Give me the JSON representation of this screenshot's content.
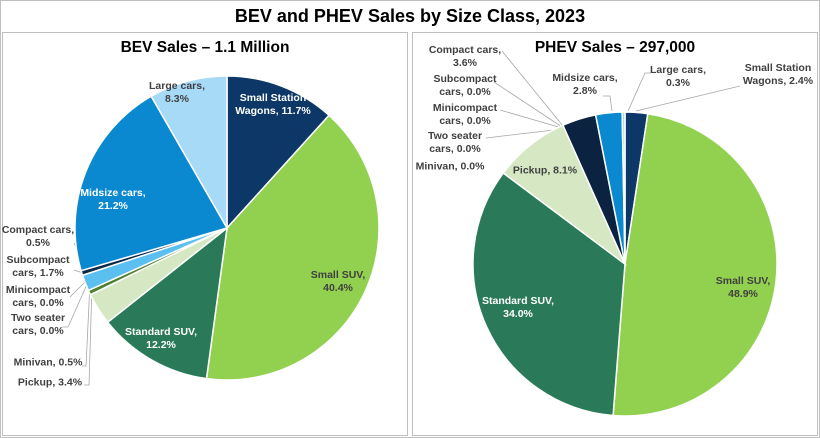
{
  "title": "BEV and PHEV Sales by Size Class, 2023",
  "chart_data": [
    {
      "type": "pie",
      "title": "BEV Sales – 1.1 Million",
      "unit": "%",
      "slices": [
        {
          "name": "Small Station Wagons",
          "value": 11.7,
          "color": "#0c3766",
          "label": "Small Station\nWagons, 11.7%"
        },
        {
          "name": "Small SUV",
          "value": 40.4,
          "color": "#92d050",
          "label": "Small SUV,\n40.4%"
        },
        {
          "name": "Standard SUV",
          "value": 12.2,
          "color": "#2a7a5a",
          "label": "Standard SUV,\n12.2%"
        },
        {
          "name": "Pickup",
          "value": 3.4,
          "color": "#d5e8c3",
          "label": "Pickup, 3.4%"
        },
        {
          "name": "Minivan",
          "value": 0.5,
          "color": "#4f7f2f",
          "label": "Minivan, 0.5%"
        },
        {
          "name": "Two seater cars",
          "value": 0.0,
          "color": "#6a9a50",
          "label": "Two seater\ncars, 0.0%"
        },
        {
          "name": "Minicompact cars",
          "value": 0.0,
          "color": "#3a5a80",
          "label": "Minicompact\ncars, 0.0%"
        },
        {
          "name": "Subcompact cars",
          "value": 1.7,
          "color": "#5bc0f0",
          "label": "Subcompact\ncars, 1.7%"
        },
        {
          "name": "Compact cars",
          "value": 0.5,
          "color": "#0b2a4a",
          "label": "Compact cars,\n0.5%"
        },
        {
          "name": "Midsize cars",
          "value": 21.2,
          "color": "#0a88d0",
          "label": "Midsize cars,\n21.2%"
        },
        {
          "name": "Large cars",
          "value": 8.3,
          "color": "#a6daf6",
          "label": "Large cars,\n8.3%"
        }
      ]
    },
    {
      "type": "pie",
      "title": "PHEV Sales – 297,000",
      "unit": "%",
      "slices": [
        {
          "name": "Small Station Wagons",
          "value": 2.4,
          "color": "#0c3766",
          "label": "Small Station\nWagons, 2.4%"
        },
        {
          "name": "Small SUV",
          "value": 48.9,
          "color": "#92d050",
          "label": "Small SUV,\n48.9%"
        },
        {
          "name": "Standard SUV",
          "value": 34.0,
          "color": "#2a7a5a",
          "label": "Standard SUV,\n34.0%"
        },
        {
          "name": "Pickup",
          "value": 8.1,
          "color": "#d5e8c3",
          "label": "Pickup, 8.1%"
        },
        {
          "name": "Minivan",
          "value": 0.0,
          "color": "#4f7f2f",
          "label": "Minivan, 0.0%"
        },
        {
          "name": "Two seater cars",
          "value": 0.0,
          "color": "#6a9a50",
          "label": "Two seater\ncars, 0.0%"
        },
        {
          "name": "Minicompact cars",
          "value": 0.0,
          "color": "#3a5a80",
          "label": "Minicompact\ncars, 0.0%"
        },
        {
          "name": "Subcompact cars",
          "value": 0.0,
          "color": "#5bc0f0",
          "label": "Subcompact\ncars, 0.0%"
        },
        {
          "name": "Compact cars",
          "value": 3.6,
          "color": "#0b2240",
          "label": "Compact cars,\n3.6%"
        },
        {
          "name": "Midsize cars",
          "value": 2.8,
          "color": "#0a88d0",
          "label": "Midsize cars,\n2.8%"
        },
        {
          "name": "Large cars",
          "value": 0.3,
          "color": "#a6daf6",
          "label": "Large cars,\n0.3%"
        }
      ]
    }
  ]
}
